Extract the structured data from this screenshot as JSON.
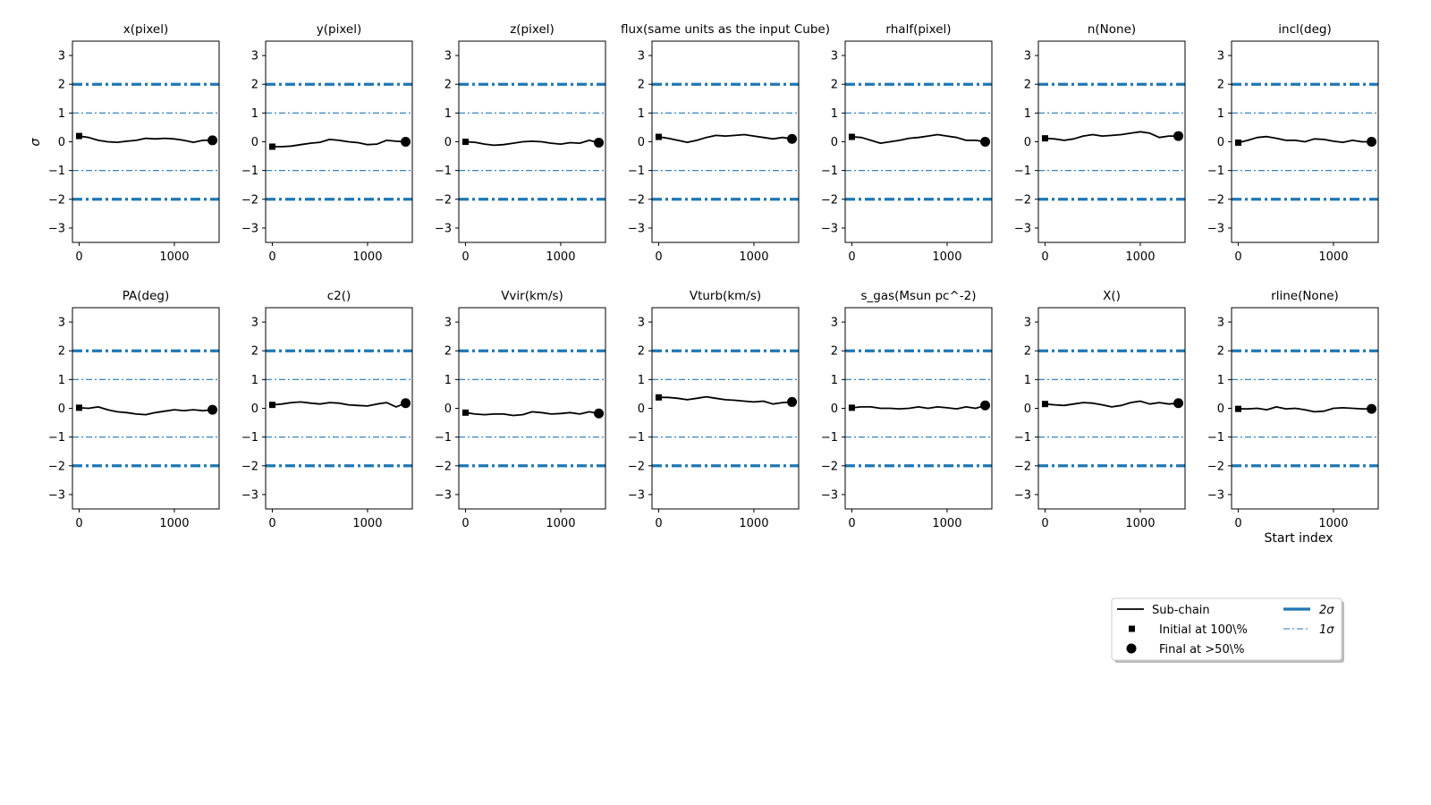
{
  "colors": {
    "line": "#000000",
    "sigma": "#1f77b4",
    "background": "#ffffff"
  },
  "chart_data": {
    "type": "line",
    "ylabel": "σ",
    "xlabel": "Start index",
    "xlim": [
      -70,
      1470
    ],
    "ylim": [
      -3.5,
      3.5
    ],
    "xticks": [
      0,
      1000
    ],
    "yticks": [
      3,
      2,
      1,
      0,
      -1,
      -2,
      -3
    ],
    "ytick_labels": [
      "3",
      "2",
      "1",
      "0",
      "−1",
      "−2",
      "−3"
    ],
    "xtick_labels": [
      "0",
      "1000"
    ],
    "sigma_lines": [
      {
        "label": "2σ",
        "values": [
          2,
          -2
        ],
        "style": "thick-dashdot"
      },
      {
        "label": "1σ",
        "values": [
          1,
          -1
        ],
        "style": "thin-dashdot"
      }
    ],
    "x": [
      0,
      100,
      200,
      300,
      400,
      500,
      600,
      700,
      800,
      900,
      1000,
      1100,
      1200,
      1300,
      1400
    ],
    "panels": [
      {
        "title": "x(pixel)",
        "initial": 0.2,
        "final": 0.05,
        "values": [
          0.2,
          0.15,
          0.05,
          0.0,
          -0.02,
          0.02,
          0.05,
          0.12,
          0.1,
          0.12,
          0.1,
          0.05,
          -0.02,
          0.05,
          0.05
        ]
      },
      {
        "title": "y(pixel)",
        "initial": -0.17,
        "final": 0.0,
        "values": [
          -0.17,
          -0.17,
          -0.15,
          -0.1,
          -0.05,
          -0.02,
          0.08,
          0.05,
          0.0,
          -0.03,
          -0.1,
          -0.08,
          0.05,
          0.02,
          0.0
        ]
      },
      {
        "title": "z(pixel)",
        "initial": 0.0,
        "final": -0.03,
        "values": [
          0.0,
          -0.02,
          -0.08,
          -0.12,
          -0.1,
          -0.05,
          0.0,
          0.02,
          0.0,
          -0.05,
          -0.08,
          -0.03,
          -0.05,
          0.05,
          -0.03
        ]
      },
      {
        "title": "flux(same units as the input Cube)",
        "initial": 0.17,
        "final": 0.1,
        "values": [
          0.17,
          0.12,
          0.05,
          -0.02,
          0.05,
          0.15,
          0.22,
          0.2,
          0.22,
          0.25,
          0.2,
          0.15,
          0.1,
          0.15,
          0.1
        ]
      },
      {
        "title": "rhalf(pixel)",
        "initial": 0.17,
        "final": 0.0,
        "values": [
          0.17,
          0.15,
          0.05,
          -0.05,
          0.0,
          0.05,
          0.12,
          0.15,
          0.2,
          0.25,
          0.2,
          0.15,
          0.05,
          0.05,
          0.0
        ]
      },
      {
        "title": "n(None)",
        "initial": 0.12,
        "final": 0.2,
        "values": [
          0.12,
          0.1,
          0.05,
          0.1,
          0.2,
          0.25,
          0.2,
          0.22,
          0.25,
          0.3,
          0.35,
          0.3,
          0.15,
          0.2,
          0.2
        ]
      },
      {
        "title": "incl(deg)",
        "initial": -0.03,
        "final": 0.0,
        "values": [
          -0.03,
          0.05,
          0.15,
          0.18,
          0.12,
          0.05,
          0.05,
          0.0,
          0.1,
          0.08,
          0.02,
          -0.02,
          0.05,
          0.0,
          0.0
        ]
      },
      {
        "title": "PA(deg)",
        "initial": 0.02,
        "final": -0.05,
        "values": [
          0.02,
          0.0,
          0.05,
          -0.05,
          -0.12,
          -0.15,
          -0.2,
          -0.22,
          -0.15,
          -0.1,
          -0.05,
          -0.08,
          -0.05,
          -0.08,
          -0.05
        ]
      },
      {
        "title": "c2()",
        "initial": 0.12,
        "final": 0.18,
        "values": [
          0.12,
          0.15,
          0.2,
          0.22,
          0.18,
          0.15,
          0.2,
          0.18,
          0.12,
          0.1,
          0.08,
          0.15,
          0.2,
          0.05,
          0.18
        ]
      },
      {
        "title": "Vvir(km/s)",
        "initial": -0.15,
        "final": -0.18,
        "values": [
          -0.15,
          -0.2,
          -0.22,
          -0.2,
          -0.2,
          -0.25,
          -0.22,
          -0.12,
          -0.15,
          -0.2,
          -0.18,
          -0.15,
          -0.2,
          -0.12,
          -0.18
        ]
      },
      {
        "title": "Vturb(km/s)",
        "initial": 0.38,
        "final": 0.22,
        "values": [
          0.38,
          0.38,
          0.35,
          0.3,
          0.35,
          0.4,
          0.35,
          0.3,
          0.28,
          0.25,
          0.22,
          0.25,
          0.15,
          0.2,
          0.22
        ]
      },
      {
        "title": "s_gas(Msun pc^-2)",
        "initial": 0.02,
        "final": 0.1,
        "values": [
          0.02,
          0.05,
          0.05,
          0.0,
          0.0,
          -0.02,
          0.0,
          0.05,
          0.0,
          0.05,
          0.02,
          -0.02,
          0.05,
          0.0,
          0.1
        ]
      },
      {
        "title": "X()",
        "initial": 0.15,
        "final": 0.18,
        "values": [
          0.15,
          0.12,
          0.1,
          0.15,
          0.2,
          0.18,
          0.12,
          0.05,
          0.1,
          0.2,
          0.25,
          0.15,
          0.2,
          0.15,
          0.18
        ]
      },
      {
        "title": "rline(None)",
        "initial": -0.02,
        "final": -0.02,
        "values": [
          -0.02,
          -0.02,
          0.0,
          -0.05,
          0.05,
          -0.02,
          0.0,
          -0.05,
          -0.12,
          -0.1,
          0.0,
          0.02,
          0.0,
          -0.02,
          -0.02
        ]
      }
    ],
    "legend": {
      "placement": "lower-right",
      "entries": [
        {
          "label": "Sub-chain",
          "marker": "line"
        },
        {
          "label": "Initial at 100\\%",
          "marker": "square"
        },
        {
          "label": "Final at $>50\\%$",
          "display": "Final at  >50\\%",
          "marker": "circle"
        },
        {
          "label": "2σ",
          "marker": "thick-dashdot"
        },
        {
          "label": "1σ",
          "marker": "thin-dashdot"
        }
      ]
    }
  }
}
